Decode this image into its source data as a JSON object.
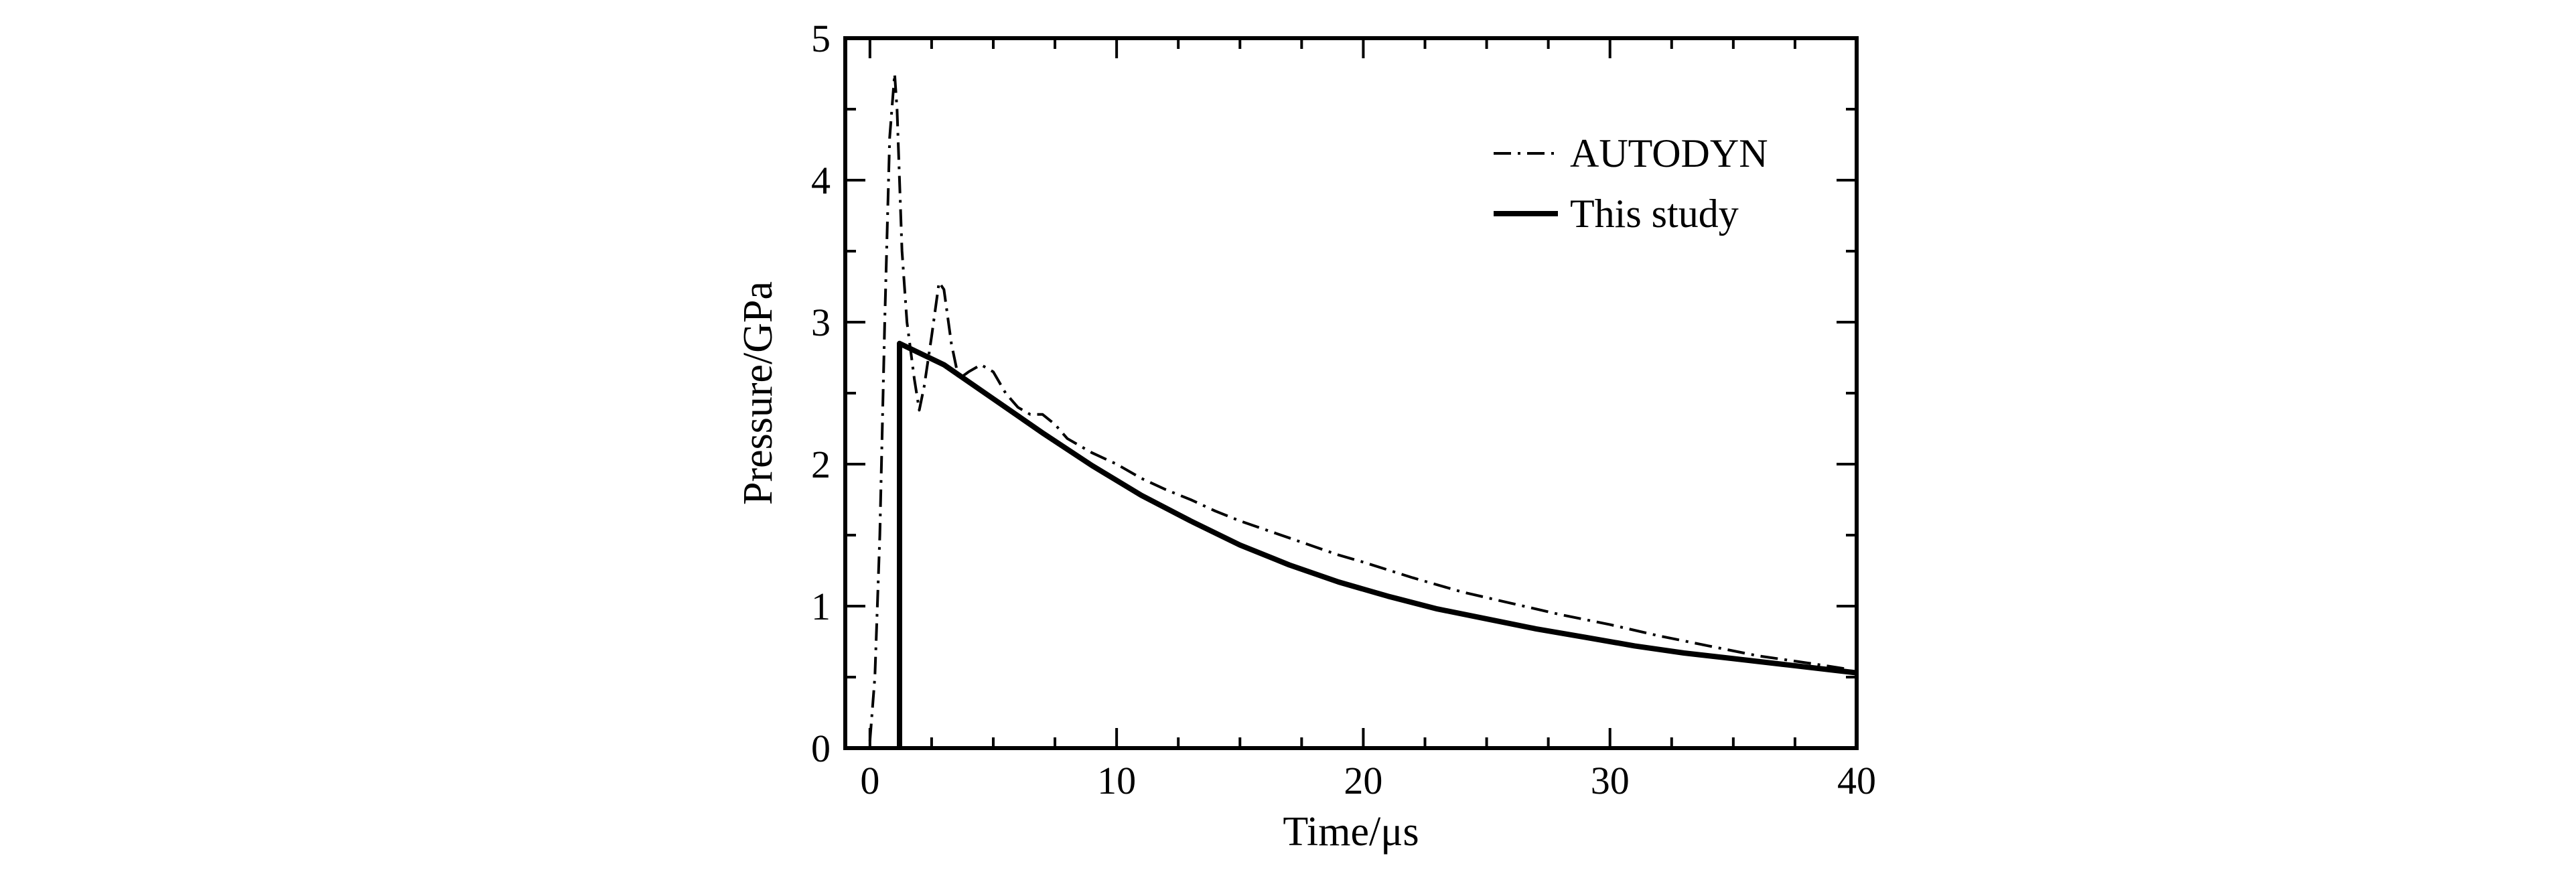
{
  "chart_data": {
    "type": "line",
    "xlabel": "Time/μs",
    "ylabel": "Pressure/GPa",
    "xlim": [
      -1,
      40
    ],
    "ylim": [
      0,
      5
    ],
    "x_ticks": [
      0,
      10,
      20,
      30,
      40
    ],
    "y_ticks": [
      0,
      1,
      2,
      3,
      4,
      5
    ],
    "x_tick_labels": [
      "0",
      "10",
      "20",
      "30",
      "40"
    ],
    "y_tick_labels": [
      "0",
      "1",
      "2",
      "3",
      "4",
      "5"
    ],
    "grid": false,
    "legend_position": "top-right",
    "series": [
      {
        "name": "AUTODYN",
        "style": "dash-dot",
        "color": "#000000",
        "x": [
          0.0,
          0.2,
          0.4,
          0.6,
          0.8,
          1.0,
          1.1,
          1.2,
          1.3,
          1.5,
          1.8,
          2.0,
          2.2,
          2.5,
          2.8,
          3.0,
          3.3,
          3.6,
          4.0,
          4.5,
          5.0,
          5.5,
          6.0,
          6.5,
          7.0,
          7.5,
          8.0,
          9.0,
          10.0,
          11.0,
          12.0,
          13.0,
          14.0,
          15.0,
          16.0,
          17.0,
          18.0,
          19.0,
          20.0,
          22.0,
          24.0,
          26.0,
          28.0,
          30.0,
          32.0,
          34.0,
          36.0,
          38.0,
          39.5
        ],
        "y": [
          0.05,
          0.5,
          1.5,
          3.0,
          4.3,
          4.75,
          4.5,
          4.0,
          3.5,
          3.0,
          2.6,
          2.38,
          2.55,
          2.9,
          3.28,
          3.23,
          2.85,
          2.6,
          2.65,
          2.7,
          2.65,
          2.5,
          2.4,
          2.35,
          2.35,
          2.28,
          2.18,
          2.08,
          2.0,
          1.9,
          1.82,
          1.75,
          1.67,
          1.6,
          1.54,
          1.48,
          1.42,
          1.36,
          1.31,
          1.2,
          1.1,
          1.02,
          0.94,
          0.87,
          0.79,
          0.72,
          0.65,
          0.6,
          0.56
        ]
      },
      {
        "name": "This study",
        "style": "solid",
        "color": "#000000",
        "x": [
          1.2,
          1.2,
          1.2,
          3.0,
          5.0,
          7.0,
          9.0,
          11.0,
          13.0,
          15.0,
          17.0,
          19.0,
          21.0,
          23.0,
          25.0,
          27.0,
          29.0,
          31.0,
          33.0,
          35.0,
          37.0,
          39.0,
          40.0
        ],
        "y": [
          0.0,
          1.5,
          2.85,
          2.7,
          2.46,
          2.22,
          1.99,
          1.78,
          1.6,
          1.43,
          1.29,
          1.17,
          1.07,
          0.98,
          0.91,
          0.84,
          0.78,
          0.72,
          0.67,
          0.63,
          0.59,
          0.55,
          0.53
        ]
      }
    ]
  }
}
